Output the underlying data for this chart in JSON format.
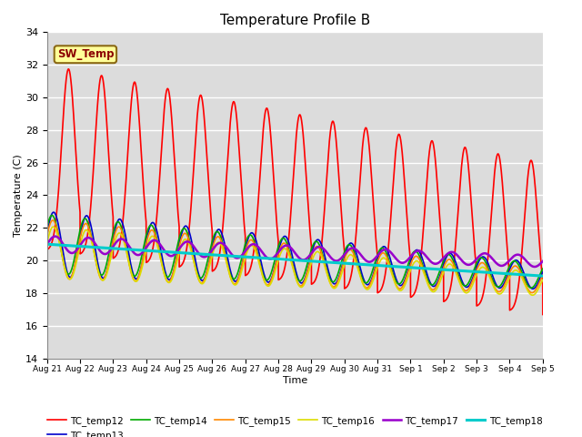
{
  "title": "Temperature Profile B",
  "xlabel": "Time",
  "ylabel": "Temperature (C)",
  "ylim": [
    14,
    34
  ],
  "background_color": "#dcdcdc",
  "sw_temp_label": "SW_Temp",
  "xtick_labels": [
    "Aug 21",
    "Aug 22",
    "Aug 23",
    "Aug 24",
    "Aug 25",
    "Aug 26",
    "Aug 27",
    "Aug 28",
    "Aug 29",
    "Aug 30",
    "Aug 31",
    "Sep 1",
    "Sep 2",
    "Sep 3",
    "Sep 4",
    "Sep 5"
  ],
  "legend_entries": [
    "TC_temp12",
    "TC_temp13",
    "TC_temp14",
    "TC_temp15",
    "TC_temp16",
    "TC_temp17",
    "TC_temp18"
  ],
  "line_colors": [
    "#ff0000",
    "#0000cc",
    "#00aa00",
    "#ff8800",
    "#dddd00",
    "#9900cc",
    "#00cccc"
  ],
  "line_widths": [
    1.2,
    1.2,
    1.2,
    1.2,
    1.2,
    1.8,
    2.2
  ]
}
